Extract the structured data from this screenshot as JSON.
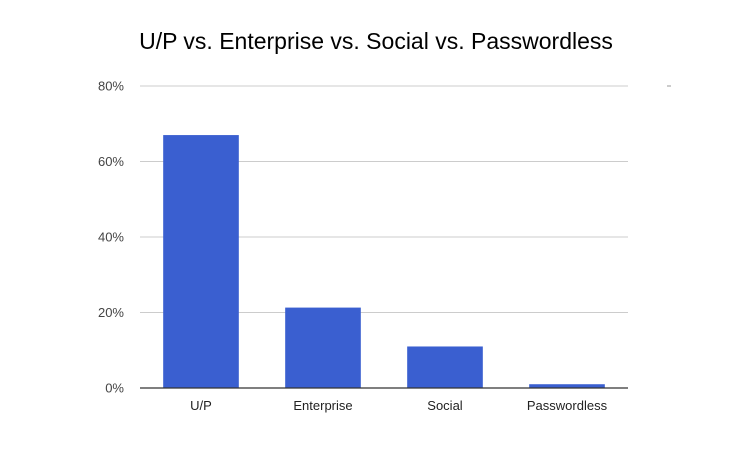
{
  "chart_data": {
    "type": "bar",
    "title": "U/P vs. Enterprise vs. Social vs. Passwordless",
    "xlabel": "",
    "ylabel": "",
    "categories": [
      "U/P",
      "Enterprise",
      "Social",
      "Passwordless"
    ],
    "values": [
      67,
      21.3,
      11,
      1
    ],
    "value_format": "percent",
    "ylim": [
      0,
      80
    ],
    "yticks": [
      0,
      20,
      40,
      60,
      80
    ],
    "ytick_labels": [
      "0%",
      "20%",
      "40%",
      "60%",
      "80%"
    ],
    "grid": true,
    "legend": "none",
    "bar_color": "#3a5fd0"
  }
}
